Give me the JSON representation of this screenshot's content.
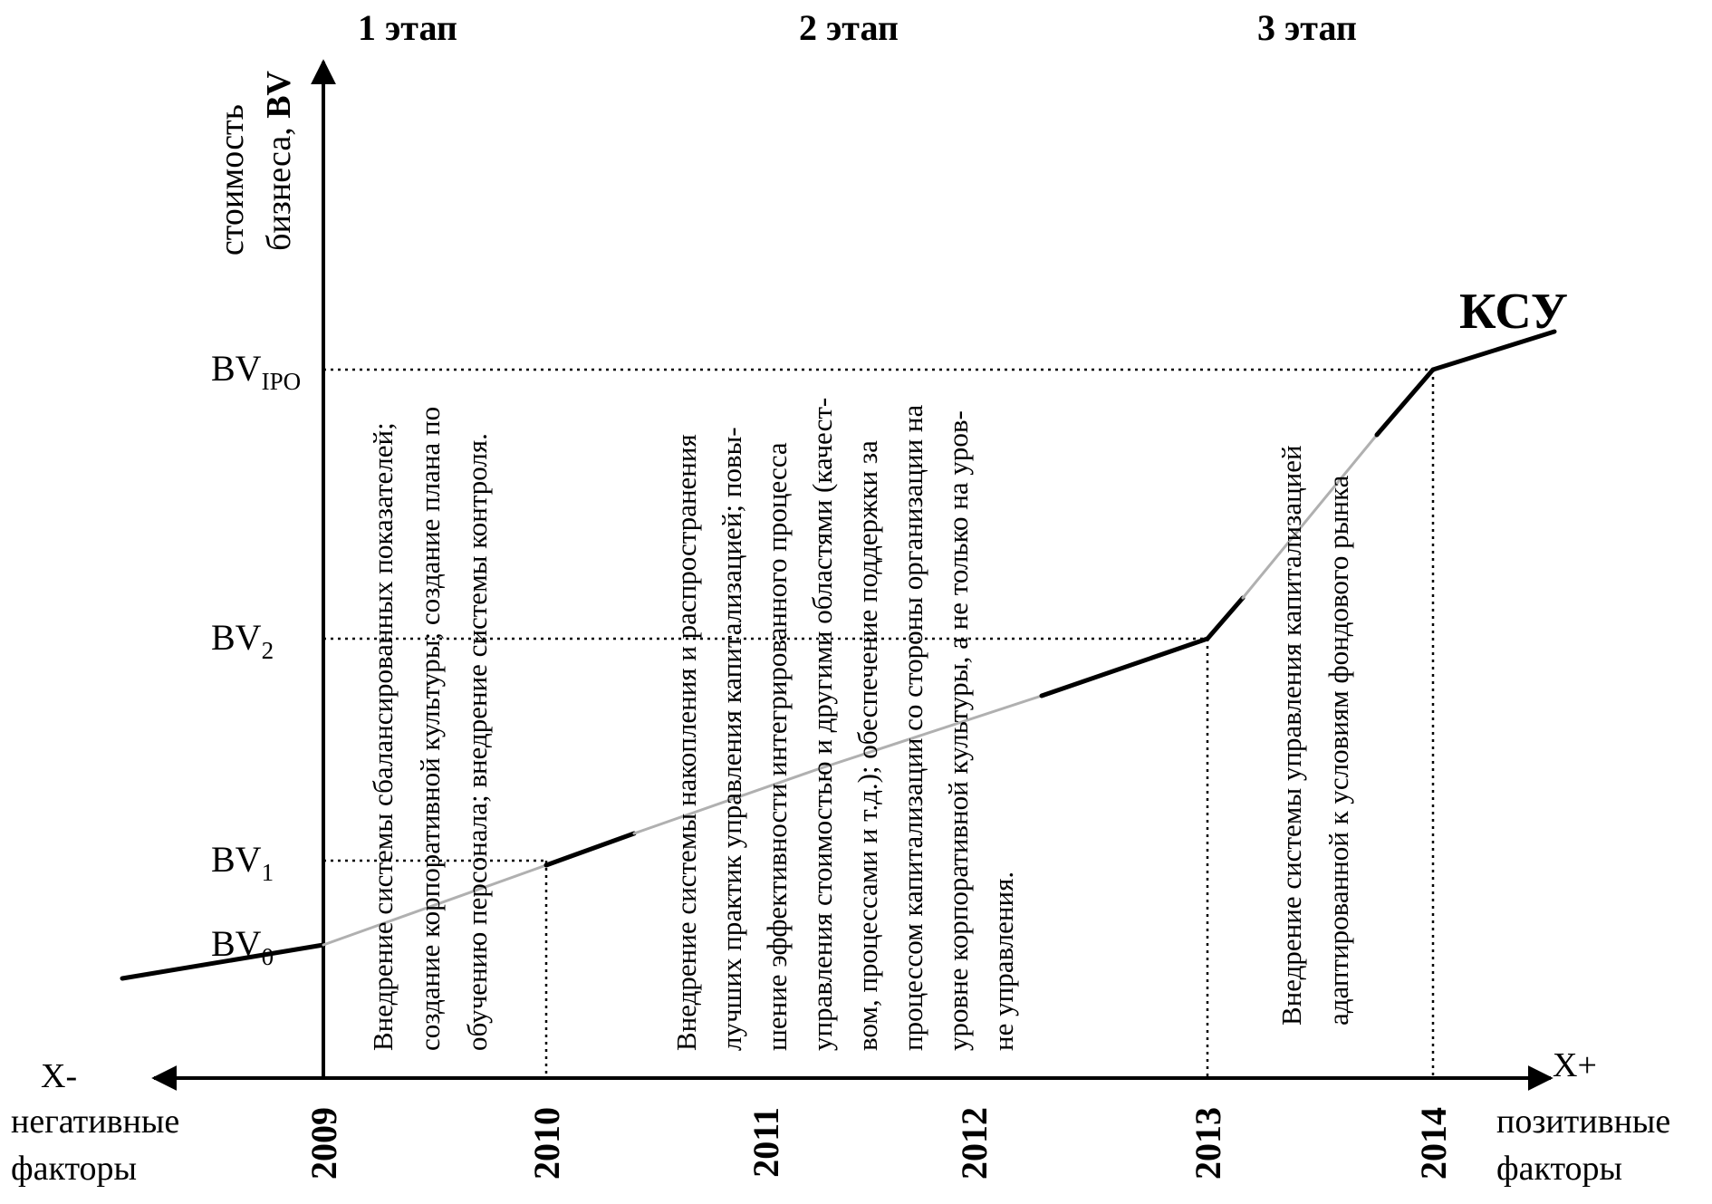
{
  "chart_data": {
    "type": "line",
    "title": "",
    "x_categories": [
      "2009",
      "2010",
      "2011",
      "2012",
      "2013",
      "2014"
    ],
    "y_levels": [
      {
        "base": "BV",
        "sub": "0"
      },
      {
        "base": "BV",
        "sub": "1"
      },
      {
        "base": "BV",
        "sub": "2"
      },
      {
        "base": "BV",
        "sub": "IPO"
      }
    ],
    "y_axis_label": {
      "line1": "стоимость",
      "line2_prefix": "бизнеса, ",
      "line2_bold": "BV"
    },
    "x_axis": {
      "negative_label": "X-",
      "negative_caption": [
        "негативные",
        "факторы"
      ],
      "positive_label": "X+",
      "positive_caption": [
        "позитивные",
        "факторы"
      ]
    },
    "series": [
      {
        "name": "КСУ",
        "points": [
          {
            "x": "pre-2009",
            "y": "below BV0"
          },
          {
            "x": "2009",
            "y": "BV0"
          },
          {
            "x": "2010",
            "y": "BV1"
          },
          {
            "x": "2013",
            "y": "BV2"
          },
          {
            "x": "2014",
            "y": "BVIPO"
          },
          {
            "x": "post-2014",
            "y": "above BVIPO"
          }
        ],
        "style": "piecewise line, alternating solid black and grey segments"
      }
    ],
    "stages": [
      {
        "title": "1 этап",
        "text": [
          "Внедрение системы сбалансированных показателей;",
          "создание корпоративной культуры; создание плана по",
          "обучению персонала; внедрение системы контроля."
        ]
      },
      {
        "title": "2 этап",
        "text": [
          "Внедрение системы накопления и распространения",
          "лучших практик управления капитализацией; повы-",
          "шение эффективности интегрированного процесса",
          "управления стоимостью и другими областями (качест-",
          "вом, процессами и т.д.); обеспечение поддержки за",
          "процессом капитализации со стороны организации на",
          "уровне корпоративной культуры, а не только на уров-",
          "не управления."
        ]
      },
      {
        "title": "3 этап",
        "text": [
          "Внедрение системы управления капитализацией",
          "адаптированной к условиям фондового рынка"
        ]
      }
    ],
    "curve_label": "КСУ",
    "grid": "dotted guide lines from axes to curve breakpoints",
    "colors": {
      "ink": "#000000",
      "grey_segment": "#b0b0b0",
      "guide": "#000000"
    }
  }
}
